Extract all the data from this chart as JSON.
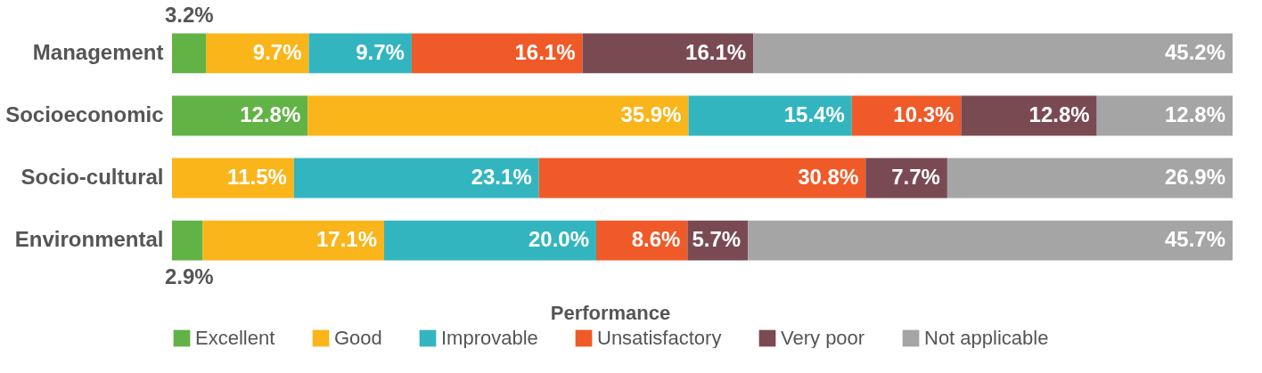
{
  "chart_data": {
    "type": "bar",
    "orientation": "horizontal",
    "stacked": true,
    "legend": "bottom",
    "legend_title": "Performance",
    "categories": [
      "Management",
      "Socioeconomic",
      "Socio-cultural",
      "Environmental"
    ],
    "series": [
      {
        "name": "Excellent",
        "color": "#62b346",
        "values": [
          3.2,
          12.8,
          null,
          2.9
        ],
        "value_labels": [
          "3.2%",
          "12.8%",
          null,
          "2.9%"
        ]
      },
      {
        "name": "Good",
        "color": "#f9b51a",
        "values": [
          9.7,
          35.9,
          11.5,
          17.1
        ],
        "value_labels": [
          "9.7%",
          "35.9%",
          "11.5%",
          "17.1%"
        ]
      },
      {
        "name": "Improvable",
        "color": "#33b5c0",
        "values": [
          9.7,
          15.4,
          23.1,
          20.0
        ],
        "value_labels": [
          "9.7%",
          "15.4%",
          "23.1%",
          "20.0%"
        ]
      },
      {
        "name": "Unsatisfactory",
        "color": "#f05a28",
        "values": [
          16.1,
          10.3,
          30.8,
          8.6
        ],
        "value_labels": [
          "16.1%",
          "10.3%",
          "30.8%",
          "8.6%"
        ]
      },
      {
        "name": "Very poor",
        "color": "#7a4a52",
        "values": [
          16.1,
          12.8,
          7.7,
          5.7
        ],
        "value_labels": [
          "16.1%",
          "12.8%",
          "7.7%",
          "5.7%"
        ]
      },
      {
        "name": "Not applicable",
        "color": "#a6a5a5",
        "values": [
          45.2,
          12.8,
          26.9,
          45.7
        ],
        "value_labels": [
          "45.2%",
          "12.8%",
          "26.9%",
          "45.7%"
        ]
      }
    ]
  }
}
